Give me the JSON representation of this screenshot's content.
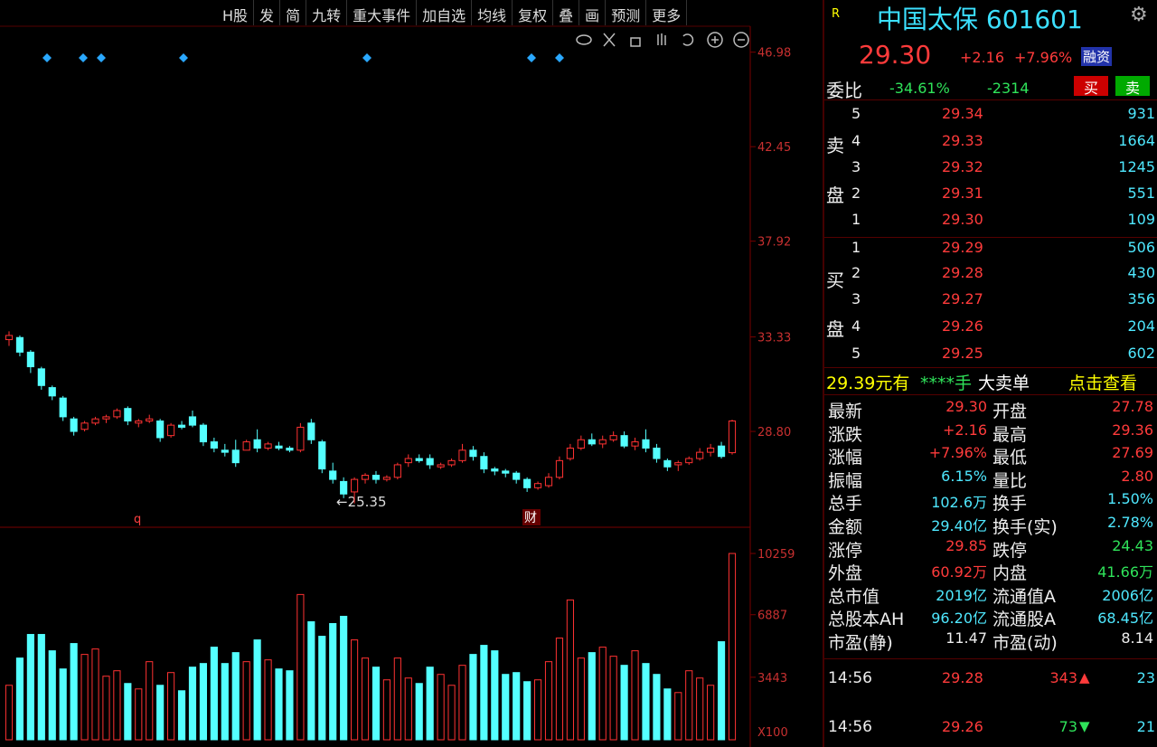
{
  "toolbar": [
    "H股",
    "发",
    "简",
    "九转",
    "重大事件",
    "加自选",
    "均线",
    "复权",
    "叠",
    "画",
    "预测",
    "更多"
  ],
  "chart_data": {
    "type": "candlestick",
    "open": [
      33.2,
      33.3,
      32.6,
      31.8,
      30.9,
      30.4,
      29.4,
      28.9,
      29.2,
      29.4,
      29.5,
      29.9,
      29.2,
      29.3,
      29.3,
      28.6,
      29.1,
      29.5,
      29.1,
      28.3,
      27.9,
      27.9,
      27.9,
      28.4,
      28.0,
      28.1,
      28.0,
      27.9,
      29.2,
      28.3,
      26.9,
      26.4,
      25.9,
      26.5,
      26.7,
      26.5,
      26.6,
      27.3,
      27.5,
      27.5,
      27.1,
      27.2,
      27.4,
      27.9,
      27.6,
      27.0,
      26.9,
      26.8,
      26.5,
      26.1,
      26.2,
      26.6,
      27.5,
      28.0,
      28.4,
      28.2,
      28.4,
      28.6,
      28.1,
      28.4,
      28.0,
      27.4,
      27.2,
      27.3,
      27.5,
      27.8,
      28.1,
      27.78
    ],
    "high": [
      33.6,
      33.4,
      32.7,
      31.9,
      31.0,
      30.5,
      29.5,
      29.3,
      29.5,
      29.6,
      29.9,
      30.0,
      29.4,
      29.6,
      29.4,
      29.2,
      29.3,
      29.8,
      29.2,
      28.5,
      28.2,
      28.4,
      28.4,
      28.9,
      28.3,
      28.3,
      28.1,
      29.2,
      29.4,
      28.4,
      27.3,
      26.6,
      26.6,
      26.8,
      26.9,
      26.7,
      27.3,
      27.7,
      27.7,
      27.7,
      27.3,
      27.5,
      28.2,
      28.1,
      27.8,
      27.1,
      27.0,
      26.9,
      26.6,
      26.4,
      26.8,
      27.6,
      28.2,
      28.6,
      28.7,
      28.6,
      28.8,
      28.8,
      28.5,
      28.9,
      28.2,
      27.5,
      27.4,
      27.6,
      28.0,
      28.2,
      28.3,
      29.36
    ],
    "low": [
      32.9,
      32.4,
      31.6,
      30.8,
      30.3,
      29.3,
      28.6,
      28.8,
      29.1,
      29.2,
      29.4,
      29.1,
      29.0,
      29.2,
      28.3,
      28.5,
      28.9,
      29.0,
      28.1,
      27.8,
      27.6,
      27.1,
      27.9,
      27.8,
      27.9,
      27.9,
      27.8,
      27.8,
      28.2,
      26.8,
      26.3,
      25.6,
      25.35,
      26.3,
      26.3,
      26.4,
      26.5,
      27.1,
      27.3,
      27.0,
      27.0,
      27.1,
      27.3,
      27.4,
      26.8,
      26.7,
      26.6,
      26.3,
      25.9,
      26.0,
      26.1,
      26.5,
      27.4,
      27.9,
      28.1,
      28.0,
      28.3,
      28.0,
      27.9,
      27.8,
      27.3,
      26.9,
      26.9,
      27.2,
      27.4,
      27.6,
      27.5,
      27.69
    ],
    "close": [
      33.4,
      32.6,
      31.9,
      31.0,
      30.5,
      29.5,
      28.8,
      29.2,
      29.4,
      29.5,
      29.8,
      29.3,
      29.3,
      29.4,
      28.5,
      29.1,
      29.0,
      29.1,
      28.3,
      28.0,
      27.8,
      27.3,
      28.3,
      28.0,
      28.2,
      28.0,
      27.9,
      29.0,
      28.4,
      27.0,
      26.5,
      25.8,
      26.5,
      26.7,
      26.5,
      26.6,
      27.2,
      27.5,
      27.4,
      27.2,
      27.2,
      27.4,
      27.9,
      27.6,
      27.0,
      26.9,
      26.8,
      26.5,
      26.1,
      26.3,
      26.6,
      27.4,
      28.0,
      28.4,
      28.2,
      28.4,
      28.6,
      28.1,
      28.3,
      28.0,
      27.5,
      27.1,
      27.3,
      27.5,
      27.8,
      28.0,
      27.6,
      29.3
    ],
    "ylim": [
      24.25,
      48.18
    ],
    "yticks": [
      {
        "value": 46.98,
        "label": "46.98"
      },
      {
        "value": 42.45,
        "label": "42.45"
      },
      {
        "value": 37.92,
        "label": "37.92"
      },
      {
        "value": 33.33,
        "label": "33.33"
      },
      {
        "value": 28.8,
        "label": "28.80"
      }
    ],
    "up_color": "#ff3232",
    "down_color": "#54ffff",
    "annotation": "←25.35",
    "markers": [
      "q",
      "财"
    ],
    "volume": {
      "values": [
        3000,
        4500,
        5800,
        5800,
        4900,
        3900,
        5300,
        4700,
        5000,
        3500,
        3800,
        3100,
        2800,
        4300,
        3000,
        3700,
        2700,
        4000,
        4200,
        5100,
        4200,
        4800,
        4300,
        5500,
        4400,
        3900,
        3800,
        8000,
        6500,
        5700,
        6400,
        6800,
        5500,
        4500,
        4000,
        3300,
        4500,
        3400,
        3100,
        4000,
        3600,
        3000,
        4100,
        4700,
        5200,
        4900,
        3600,
        3700,
        3200,
        3300,
        4300,
        5600,
        7700,
        4500,
        4800,
        5100,
        4600,
        4100,
        4900,
        4200,
        3600,
        2800,
        2600,
        3800,
        3400,
        3000,
        5400,
        10259
      ],
      "ylim": [
        0,
        11355
      ],
      "yticks": [
        10259,
        6887,
        3443
      ],
      "unit_label": "X100"
    }
  },
  "quote": {
    "flag": "R",
    "name": "中国太保 601601",
    "price": "29.30",
    "change": "+2.16",
    "pct": "+7.96%",
    "tag": "融资",
    "ratio_label": "委比",
    "ratio": "-34.61%",
    "diff": "-2314",
    "buy": "买",
    "sell": "卖"
  },
  "orderbook": {
    "sell_label": [
      "卖",
      "盘"
    ],
    "buy_label": [
      "买",
      "盘"
    ],
    "asks": [
      [
        "5",
        "29.34",
        "931"
      ],
      [
        "4",
        "29.33",
        "1664"
      ],
      [
        "3",
        "29.32",
        "1245"
      ],
      [
        "2",
        "29.31",
        "551"
      ],
      [
        "1",
        "29.30",
        "109"
      ]
    ],
    "bids": [
      [
        "1",
        "29.29",
        "506"
      ],
      [
        "2",
        "29.28",
        "430"
      ],
      [
        "3",
        "29.27",
        "356"
      ],
      [
        "4",
        "29.26",
        "204"
      ],
      [
        "5",
        "29.25",
        "602"
      ]
    ]
  },
  "bigorder": [
    "29.39元有",
    "****手",
    "大卖单",
    "点击查看"
  ],
  "stats": [
    [
      {
        "t": "最新"
      },
      {
        "t": "29.30",
        "c": "red"
      },
      {
        "t": "开盘"
      },
      {
        "t": "27.78",
        "c": "red"
      }
    ],
    [
      {
        "t": "涨跌"
      },
      {
        "t": "+2.16",
        "c": "red"
      },
      {
        "t": "最高"
      },
      {
        "t": "29.36",
        "c": "red"
      }
    ],
    [
      {
        "t": "涨幅"
      },
      {
        "t": "+7.96%",
        "c": "red"
      },
      {
        "t": "最低"
      },
      {
        "t": "27.69",
        "c": "red"
      }
    ],
    [
      {
        "t": "振幅"
      },
      {
        "t": "6.15%",
        "c": "cyan"
      },
      {
        "t": "量比"
      },
      {
        "t": "2.80",
        "c": "red"
      }
    ],
    [
      {
        "t": "总手"
      },
      {
        "t": "102.6万",
        "c": "cyan"
      },
      {
        "t": "换手"
      },
      {
        "t": "1.50%",
        "c": "cyan"
      }
    ],
    [
      {
        "t": "金额"
      },
      {
        "t": "29.40亿",
        "c": "cyan"
      },
      {
        "t": "换手(实)"
      },
      {
        "t": "2.78%",
        "c": "cyan"
      }
    ],
    [
      {
        "t": "涨停"
      },
      {
        "t": "29.85",
        "c": "red"
      },
      {
        "t": "跌停"
      },
      {
        "t": "24.43",
        "c": "green"
      }
    ],
    [
      {
        "t": "外盘"
      },
      {
        "t": "60.92万",
        "c": "red"
      },
      {
        "t": "内盘"
      },
      {
        "t": "41.66万",
        "c": "green"
      }
    ],
    [
      {
        "t": "总市值"
      },
      {
        "t": "2019亿",
        "c": "cyan"
      },
      {
        "t": "流通值A"
      },
      {
        "t": "2006亿",
        "c": "cyan"
      }
    ],
    [
      {
        "t": "总股本AH"
      },
      {
        "t": "96.20亿",
        "c": "cyan"
      },
      {
        "t": "流通股A"
      },
      {
        "t": "68.45亿",
        "c": "cyan"
      }
    ],
    [
      {
        "t": "市盈(静)"
      },
      {
        "t": "11.47",
        "c": "white"
      },
      {
        "t": "市盈(动)"
      },
      {
        "t": "8.14",
        "c": "white"
      }
    ]
  ],
  "trades": [
    {
      "time": "14:56",
      "price": "29.28",
      "vol": "343",
      "dir": "up",
      "n": "23"
    },
    {
      "time": "14:56",
      "price": "29.26",
      "vol": "73",
      "dir": "down",
      "n": "21"
    }
  ]
}
